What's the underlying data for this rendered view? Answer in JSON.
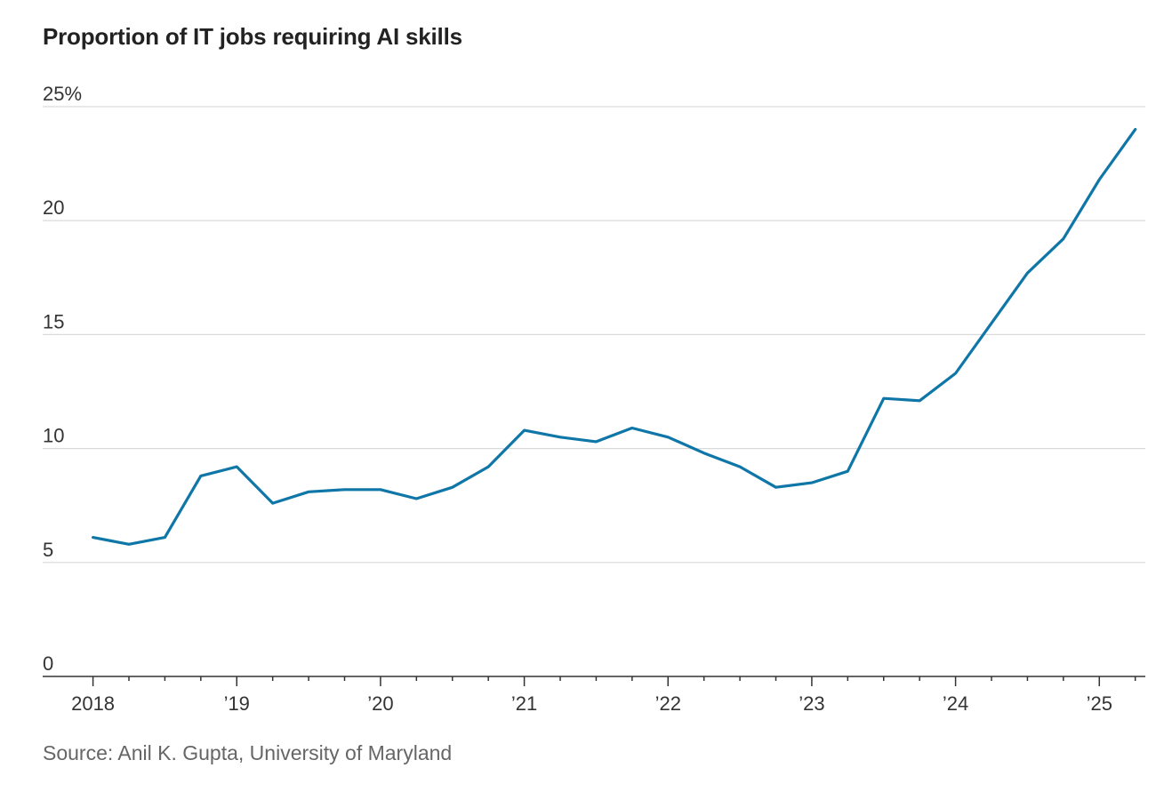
{
  "chart_data": {
    "type": "line",
    "title": "Proportion of IT jobs requiring AI skills",
    "source": "Source: Anil K. Gupta, University of Maryland",
    "xlabel": "",
    "ylabel": "",
    "ylim": [
      0,
      25
    ],
    "y_ticks": [
      {
        "value": 0,
        "label": "0"
      },
      {
        "value": 5,
        "label": "5"
      },
      {
        "value": 10,
        "label": "10"
      },
      {
        "value": 15,
        "label": "15"
      },
      {
        "value": 20,
        "label": "20"
      },
      {
        "value": 25,
        "label": "25%"
      }
    ],
    "x_ticks": [
      {
        "value": 2018,
        "label": "2018"
      },
      {
        "value": 2019,
        "label": "’19"
      },
      {
        "value": 2020,
        "label": "’20"
      },
      {
        "value": 2021,
        "label": "’21"
      },
      {
        "value": 2022,
        "label": "’22"
      },
      {
        "value": 2023,
        "label": "’23"
      },
      {
        "value": 2024,
        "label": "’24"
      },
      {
        "value": 2025,
        "label": "’25"
      }
    ],
    "x_minor_ticks": [
      2018.25,
      2018.5,
      2018.75,
      2019.25,
      2019.5,
      2019.75,
      2020.25,
      2020.5,
      2020.75,
      2021.25,
      2021.5,
      2021.75,
      2022.25,
      2022.5,
      2022.75,
      2023.25,
      2023.5,
      2023.75,
      2024.25,
      2024.5,
      2024.75,
      2025.25
    ],
    "xlim": [
      2017.65,
      2025.32
    ],
    "grid": "horizontal",
    "series": [
      {
        "color": "#0f76a8",
        "x": [
          2018,
          2018.25,
          2018.5,
          2018.75,
          2019,
          2019.25,
          2019.5,
          2019.75,
          2020,
          2020.25,
          2020.5,
          2020.75,
          2021,
          2021.25,
          2021.5,
          2021.75,
          2022,
          2022.25,
          2022.5,
          2022.75,
          2023,
          2023.25,
          2023.5,
          2023.75,
          2024,
          2024.25,
          2024.5,
          2024.75,
          2025,
          2025.25
        ],
        "values": [
          6.1,
          5.8,
          6.1,
          8.8,
          9.2,
          7.6,
          8.1,
          8.2,
          8.2,
          7.8,
          8.3,
          9.2,
          10.8,
          10.5,
          10.3,
          10.9,
          10.5,
          9.8,
          9.2,
          8.3,
          8.5,
          9.0,
          12.2,
          12.1,
          13.3,
          15.5,
          17.7,
          19.2,
          21.8,
          24.0
        ]
      }
    ]
  }
}
